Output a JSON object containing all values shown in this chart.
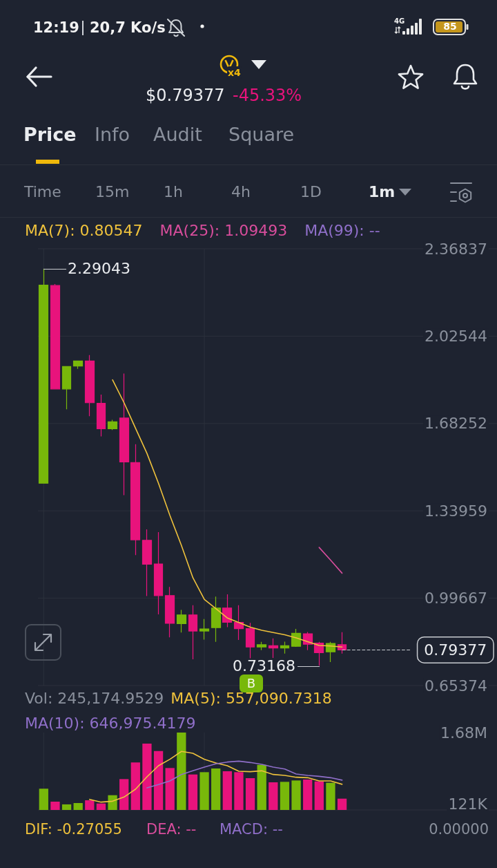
{
  "chart_data": [
    {
      "type": "other",
      "annotations": [
        "12:19",
        "20,7 Ko/s",
        "4G",
        "85",
        "x4",
        "$0.79377",
        "-45.33%",
        "Price",
        "Info",
        "Audit",
        "Square",
        "Time",
        "15m",
        "1h",
        "4h",
        "1D",
        "1m"
      ]
    },
    {
      "type": "candlestick",
      "categories": [
        null,
        null,
        null,
        null,
        null,
        null,
        null,
        null,
        null,
        null,
        null,
        null,
        null,
        null,
        null,
        null,
        null,
        null,
        null,
        null,
        null,
        null,
        null,
        null,
        null,
        null,
        null,
        null,
        null,
        null,
        null,
        null,
        null,
        null,
        null,
        null,
        null,
        null,
        null,
        null
      ],
      "ohlc": [
        [
          1.448,
          2.29043,
          1.448,
          2.226
        ],
        [
          2.224,
          2.23,
          1.818,
          1.818
        ],
        [
          1.818,
          1.906,
          1.738,
          1.906
        ],
        [
          1.908,
          1.928,
          1.897,
          1.928
        ],
        [
          1.928,
          1.951,
          1.711,
          1.764
        ],
        [
          1.762,
          1.796,
          1.632,
          1.662
        ],
        [
          1.662,
          1.697,
          1.657,
          1.689
        ],
        [
          1.704,
          1.879,
          1.401,
          1.532
        ],
        [
          1.529,
          1.601,
          1.166,
          1.226
        ],
        [
          1.224,
          1.267,
          1.005,
          1.13
        ],
        [
          1.131,
          1.256,
          0.933,
          1.007
        ],
        [
          1.007,
          1.041,
          0.843,
          0.898
        ],
        [
          0.897,
          0.951,
          0.862,
          0.931
        ],
        [
          0.931,
          0.969,
          0.757,
          0.868
        ],
        [
          0.868,
          0.915,
          0.834,
          0.876
        ],
        [
          0.881,
          1.003,
          0.825,
          0.958
        ],
        [
          0.958,
          1.012,
          0.883,
          0.902
        ],
        [
          0.902,
          0.969,
          0.833,
          0.877
        ],
        [
          0.877,
          0.9,
          0.761,
          0.805
        ],
        [
          0.805,
          0.825,
          0.793,
          0.814
        ],
        [
          0.81,
          0.839,
          0.762,
          0.801
        ],
        [
          0.801,
          0.826,
          0.779,
          0.81
        ],
        [
          0.808,
          0.876,
          0.806,
          0.859
        ],
        [
          0.857,
          0.864,
          0.793,
          0.816
        ],
        [
          0.82,
          0.825,
          0.73168,
          0.783
        ],
        [
          0.786,
          0.825,
          0.746,
          0.819
        ],
        [
          0.814,
          0.863,
          0.779,
          0.79377
        ],
        null,
        null,
        null,
        null,
        null,
        null,
        null,
        null,
        null,
        null,
        null,
        null,
        null
      ],
      "colors": [
        "#78b80a",
        "#e8137c",
        "#78b80a",
        "#78b80a",
        "#e8137c",
        "#e8137c",
        "#78b80a",
        "#e8137c",
        "#e8137c",
        "#e8137c",
        "#e8137c",
        "#e8137c",
        "#78b80a",
        "#e8137c",
        "#78b80a",
        "#78b80a",
        "#e8137c",
        "#e8137c",
        "#e8137c",
        "#78b80a",
        "#e8137c",
        "#78b80a",
        "#78b80a",
        "#e8137c",
        "#e8137c",
        "#78b80a",
        "#e8137c",
        null,
        null,
        null,
        null,
        null,
        null,
        null,
        null,
        null,
        null,
        null,
        null,
        null
      ],
      "series": [
        {
          "type": "line",
          "name": "MA(7): 0.80547",
          "color": "#efc23c",
          "values": [
            null,
            null,
            null,
            null,
            null,
            null,
            1.854,
            1.764,
            1.664,
            1.565,
            1.448,
            1.321,
            1.204,
            1.077,
            0.992,
            0.956,
            0.919,
            0.901,
            0.883,
            0.871,
            0.862,
            0.853,
            0.841,
            0.826,
            0.811,
            0.809,
            0.805,
            null,
            null,
            null,
            null,
            null,
            null,
            null,
            null,
            null,
            null,
            null,
            null,
            null
          ]
        },
        {
          "type": "line",
          "name": "MA(25): 1.09493",
          "color": "#d84d9c",
          "values": [
            null,
            null,
            null,
            null,
            null,
            null,
            null,
            null,
            null,
            null,
            null,
            null,
            null,
            null,
            null,
            null,
            null,
            null,
            null,
            null,
            null,
            null,
            null,
            null,
            1.196,
            1.146,
            1.095,
            null,
            null,
            null,
            null,
            null,
            null,
            null,
            null,
            null,
            null,
            null,
            null,
            null
          ]
        },
        {
          "type": "line",
          "name": "MA(99): --",
          "color": "#8f6fc9",
          "values": [
            null,
            null,
            null,
            null,
            null,
            null,
            null,
            null,
            null,
            null,
            null,
            null,
            null,
            null,
            null,
            null,
            null,
            null,
            null,
            null,
            null,
            null,
            null,
            null,
            null,
            null,
            null,
            null,
            null,
            null,
            null,
            null,
            null,
            null,
            null,
            null,
            null,
            null,
            null,
            null
          ]
        }
      ],
      "ylim": [
        0.65374,
        2.36837
      ],
      "yticks": [
        0.65374,
        0.99667,
        1.33959,
        1.68252,
        2.02544,
        2.36837
      ],
      "tick_labels": "y",
      "grid": true,
      "legend": "top left",
      "marker": "none",
      "ref_lines": [
        {
          "axis": "y",
          "value": 0.79377,
          "label": "0.79377",
          "line_style": "dashed",
          "color": "#c9ccd1"
        }
      ],
      "annotations": [
        "2.29043",
        "0.73168",
        "B"
      ]
    },
    {
      "type": "bar",
      "categories": [
        null,
        null,
        null,
        null,
        null,
        null,
        null,
        null,
        null,
        null,
        null,
        null,
        null,
        null,
        null,
        null,
        null,
        null,
        null,
        null,
        null,
        null,
        null,
        null,
        null,
        null,
        null,
        null,
        null,
        null,
        null,
        null,
        null,
        null,
        null,
        null,
        null,
        null,
        null,
        null
      ],
      "series": [
        {
          "name": "Vol: 245,174.9529",
          "colors": [
            "#78b80a",
            "#e8137c",
            "#78b80a",
            "#78b80a",
            "#e8137c",
            "#e8137c",
            "#78b80a",
            "#e8137c",
            "#e8137c",
            "#e8137c",
            "#e8137c",
            "#e8137c",
            "#78b80a",
            "#e8137c",
            "#78b80a",
            "#78b80a",
            "#e8137c",
            "#e8137c",
            "#e8137c",
            "#78b80a",
            "#e8137c",
            "#78b80a",
            "#78b80a",
            "#e8137c",
            "#e8137c",
            "#78b80a",
            "#e8137c",
            null,
            null,
            null,
            null,
            null,
            null,
            null,
            null,
            null,
            null,
            null,
            null,
            null
          ],
          "values": [
            460000,
            180000,
            121000,
            150000,
            210000,
            140000,
            320000,
            670000,
            1030000,
            1440000,
            1280000,
            910000,
            1680000,
            770000,
            820000,
            900000,
            840000,
            820000,
            690000,
            980000,
            600000,
            610000,
            640000,
            660000,
            620000,
            590000,
            245174.9529,
            null,
            null,
            null,
            null,
            null,
            null,
            null,
            null,
            null,
            null,
            null,
            null,
            null
          ]
        },
        {
          "type": "line",
          "name": "MA(5): 557,090.7318",
          "color": "#efc23c",
          "values": [
            null,
            null,
            null,
            null,
            230000,
            170000,
            190000,
            280000,
            450000,
            720000,
            960000,
            1100000,
            1270000,
            1230000,
            1100000,
            1020000,
            960000,
            840000,
            830000,
            850000,
            770000,
            750000,
            710000,
            700000,
            630000,
            630000,
            557090.7318,
            null,
            null,
            null,
            null,
            null,
            null,
            null,
            null,
            null,
            null,
            null,
            null,
            null
          ]
        },
        {
          "type": "line",
          "name": "MA(10): 646,975.4179",
          "color": "#8f6fc9",
          "values": [
            null,
            null,
            null,
            null,
            null,
            null,
            null,
            null,
            null,
            480000,
            550000,
            630000,
            770000,
            850000,
            930000,
            1000000,
            1040000,
            1060000,
            1030000,
            990000,
            930000,
            890000,
            780000,
            750000,
            730000,
            700000,
            646975.4179,
            null,
            null,
            null,
            null,
            null,
            null,
            null,
            null,
            null,
            null,
            null,
            null,
            null
          ]
        }
      ],
      "ylim": [
        0,
        1680000
      ],
      "yticks": [
        {
          "value": 121000,
          "label": "121K"
        },
        {
          "value": 1680000,
          "label": "1.68M"
        }
      ],
      "tick_labels": "y",
      "grid": "x",
      "legend": "top left",
      "marker": "none"
    },
    {
      "type": "other",
      "annotations": [
        "DIF: -0.27055",
        "DEA: --",
        "MACD: --",
        "0.00000"
      ],
      "colors": [
        "#efc23c",
        "#d84d9c",
        "#8f6fc9",
        "#8a909c"
      ]
    }
  ]
}
